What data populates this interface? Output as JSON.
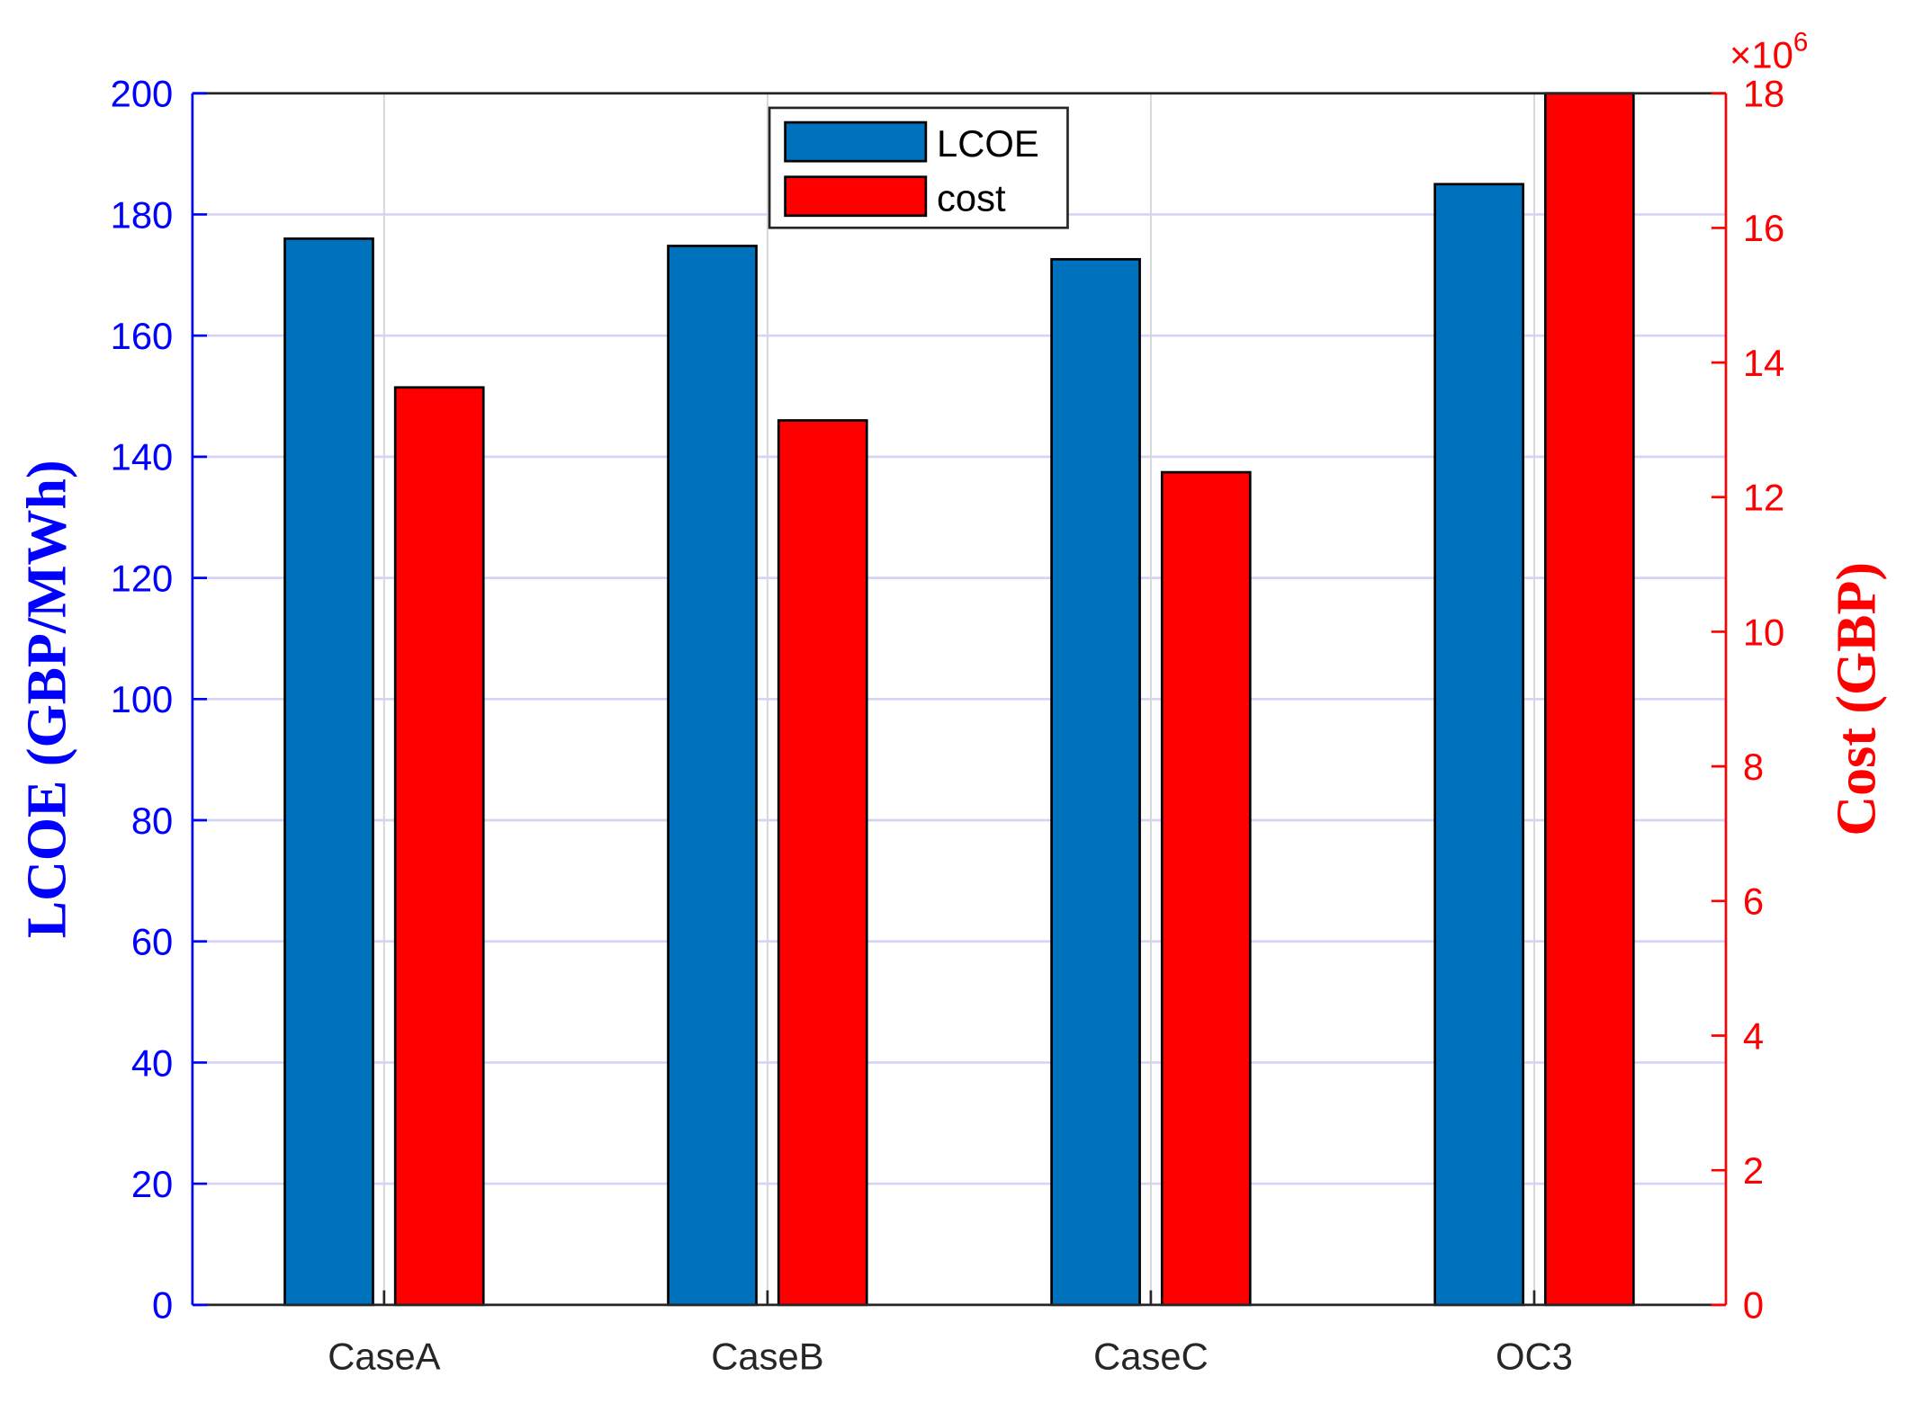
{
  "chart_data": {
    "type": "bar",
    "categories": [
      "CaseA",
      "CaseB",
      "CaseC",
      "OC3"
    ],
    "series": [
      {
        "name": "LCOE",
        "axis": "left",
        "values": [
          176.0,
          174.8,
          172.6,
          185.0
        ],
        "color": "#0072BD"
      },
      {
        "name": "cost",
        "axis": "right",
        "values": [
          13630000,
          13140000,
          12370000,
          18000000
        ],
        "color": "#FF0000"
      }
    ],
    "xlabel": "",
    "ylabel": "LCOE (GBP/MWh)",
    "ylabel_right": "Cost (GBP)",
    "ylim": [
      0,
      200
    ],
    "ylim_right": [
      0,
      18000000
    ],
    "yticks": [
      0,
      20,
      40,
      60,
      80,
      100,
      120,
      140,
      160,
      180,
      200
    ],
    "yticks_right": [
      0,
      2,
      4,
      6,
      8,
      10,
      12,
      14,
      16,
      18
    ],
    "right_exponent_label": "×10",
    "right_exponent_power": "6",
    "left_axis_color": "#0000FF",
    "right_axis_color": "#FF0000",
    "grid": true,
    "legend_position": "top-center"
  }
}
